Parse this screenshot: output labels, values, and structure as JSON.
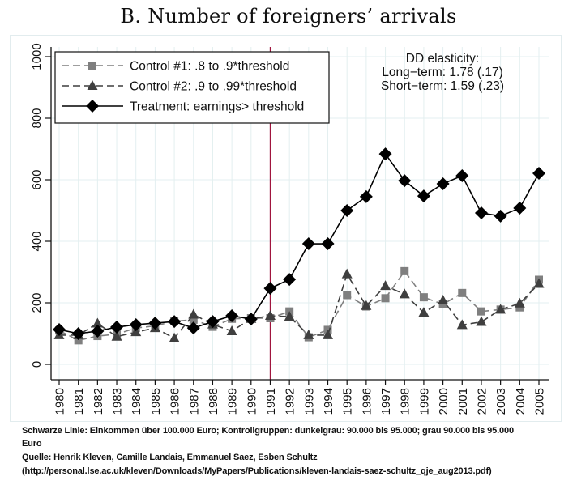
{
  "chart_data": {
    "type": "line",
    "title": "B. Number of foreigners’ arrivals",
    "xlabel": "",
    "ylabel": "",
    "x": [
      1980,
      1981,
      1982,
      1983,
      1984,
      1985,
      1986,
      1987,
      1988,
      1989,
      1990,
      1991,
      1992,
      1993,
      1994,
      1995,
      1996,
      1997,
      1998,
      1999,
      2000,
      2001,
      2002,
      2003,
      2004,
      2005
    ],
    "x_tick_labels": [
      "1980",
      "1981",
      "1982",
      "1983",
      "1984",
      "1985",
      "1986",
      "1987",
      "1988",
      "1989",
      "1990",
      "1991",
      "1992",
      "1993",
      "1994",
      "1995",
      "1996",
      "1997",
      "1998",
      "1999",
      "2000",
      "2001",
      "2002",
      "2003",
      "2004",
      "2005"
    ],
    "ylim": [
      0,
      1000
    ],
    "y_ticks": [
      0,
      200,
      400,
      600,
      800,
      1000
    ],
    "y_tick_labels": [
      "0",
      "200",
      "400",
      "600",
      "800",
      "1000"
    ],
    "grid": true,
    "vertical_reference_line": {
      "x": 1991,
      "color": "#a0153e"
    },
    "legend_position": "top-left",
    "series": [
      {
        "name": "Control #1: .8 to .9*threshold",
        "marker": "square",
        "line_style": "dashed",
        "color": "#7f7f7f",
        "values": [
          110,
          78,
          92,
          98,
          118,
          125,
          140,
          145,
          122,
          148,
          150,
          150,
          172,
          88,
          112,
          225,
          188,
          215,
          303,
          218,
          195,
          232,
          172,
          178,
          185,
          275
        ]
      },
      {
        "name": "Control #2: .9 to .99*threshold",
        "marker": "triangle",
        "line_style": "dashed",
        "color": "#3f3f3f",
        "values": [
          95,
          95,
          133,
          90,
          105,
          118,
          85,
          162,
          130,
          108,
          148,
          158,
          155,
          95,
          95,
          293,
          190,
          255,
          228,
          168,
          208,
          128,
          138,
          178,
          198,
          262
        ]
      },
      {
        "name": "Treatment: earnings> threshold",
        "marker": "diamond",
        "line_style": "solid",
        "color": "#000000",
        "values": [
          113,
          100,
          108,
          121,
          129,
          134,
          139,
          118,
          139,
          158,
          147,
          247,
          276,
          392,
          392,
          500,
          545,
          684,
          597,
          547,
          587,
          613,
          492,
          482,
          508,
          621
        ]
      }
    ],
    "annotations": [
      "DD elasticity:",
      "Long−term: 1.78 (.17)",
      "Short−term: 1.59 (.23)"
    ]
  },
  "footer": {
    "line1": "Schwarze Linie: Einkommen über 100.000 Euro; Kontrollgruppen: dunkelgrau: 90.000 bis 95.000; grau 90.000 bis 95.000",
    "line2": "Euro",
    "line3": "Quelle: Henrik Kleven, Camille Landais, Emmanuel Saez, Esben Schultz",
    "line4": "(http://personal.lse.ac.uk/kleven/Downloads/MyPapers/Publications/kleven-landais-saez-schultz_qje_aug2013.pdf)"
  }
}
